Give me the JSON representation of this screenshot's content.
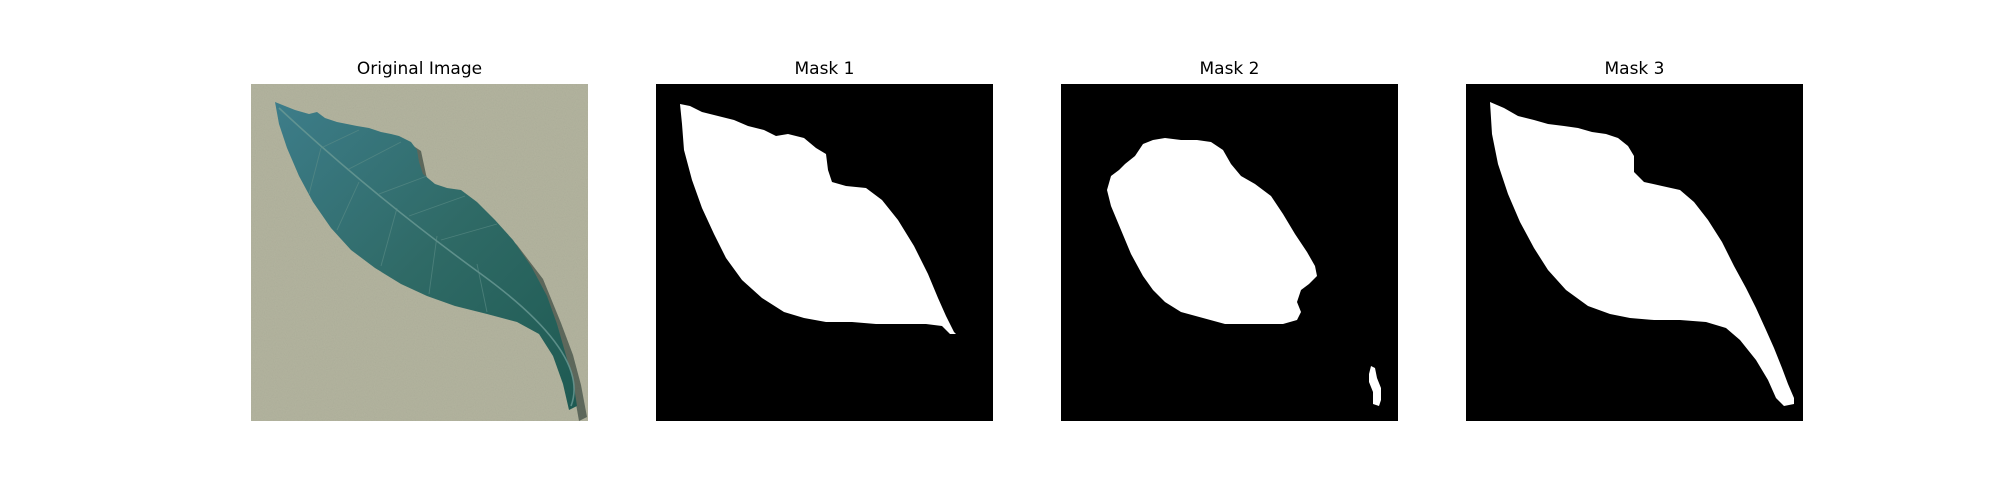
{
  "figure": {
    "panels": [
      {
        "title": "Original Image",
        "kind": "photo-leaf"
      },
      {
        "title": "Mask 1",
        "kind": "binary-mask"
      },
      {
        "title": "Mask 2",
        "kind": "binary-mask"
      },
      {
        "title": "Mask 3",
        "kind": "binary-mask"
      }
    ],
    "colors": {
      "background": "#ffffff",
      "photo_background": "#b3b49f",
      "leaf": "#2f6a66",
      "leaf_dark": "#1f4d4a",
      "mask_background": "#000000",
      "mask_foreground": "#ffffff"
    }
  }
}
